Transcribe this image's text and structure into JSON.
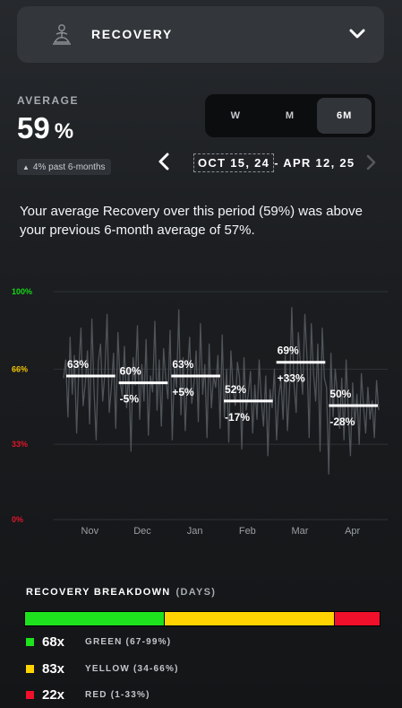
{
  "header": {
    "title": "RECOVERY",
    "icon": "meditation-icon",
    "toggle_icon": "chevron-down-icon"
  },
  "average": {
    "label": "AVERAGE",
    "value": "59",
    "unit": "%",
    "badge": "4% past 6-months",
    "badge_icon": "triangle-up-icon"
  },
  "period_selector": {
    "options": [
      "W",
      "M",
      "6M"
    ],
    "selected": "6M"
  },
  "date_range": {
    "text_before": "OCT 15, ",
    "text_selected": "24",
    "text_after": " - APR 12, 25"
  },
  "summary": "Your average Recovery over this period (59%) was above your previous 6-month average of 57%.",
  "chart_data": {
    "type": "line",
    "y_ticks": [
      {
        "label": "100%",
        "value": 100,
        "color": "#16d716"
      },
      {
        "label": "66%",
        "value": 66,
        "color": "#f2c500"
      },
      {
        "label": "33%",
        "value": 33,
        "color": "#e0162b"
      },
      {
        "label": "0%",
        "value": 0,
        "color": "#e0162b"
      }
    ],
    "ylim": [
      0,
      100
    ],
    "months": [
      "Nov",
      "Dec",
      "Jan",
      "Feb",
      "Mar",
      "Apr"
    ],
    "monthly_averages": [
      {
        "label": "63%",
        "change": "",
        "value": 63
      },
      {
        "label": "60%",
        "change": "-5%",
        "value": 60
      },
      {
        "label": "63%",
        "change": "+5%",
        "value": 63
      },
      {
        "label": "52%",
        "change": "-17%",
        "value": 52
      },
      {
        "label": "69%",
        "change": "+33%",
        "value": 69
      },
      {
        "label": "50%",
        "change": "-28%",
        "value": 50
      }
    ],
    "daily_values": [
      62,
      70,
      45,
      80,
      55,
      72,
      38,
      66,
      84,
      50,
      60,
      74,
      42,
      88,
      57,
      35,
      69,
      77,
      52,
      64,
      90,
      47,
      58,
      73,
      40,
      82,
      61,
      54,
      76,
      49,
      66,
      30,
      71,
      59,
      85,
      44,
      68,
      52,
      79,
      37,
      63,
      56,
      87,
      48,
      70,
      41,
      75,
      62,
      53,
      83,
      35,
      67,
      58,
      92,
      46,
      71,
      39,
      64,
      80,
      51,
      60,
      74,
      43,
      86,
      55,
      68,
      36,
      77,
      49,
      63,
      58,
      72,
      40,
      81,
      45,
      66,
      34,
      74,
      57,
      50,
      69,
      62,
      31,
      71,
      48,
      55,
      65,
      38,
      59,
      44,
      70,
      52,
      41,
      63,
      28,
      57,
      49,
      66,
      35,
      54,
      61,
      44,
      72,
      39,
      58,
      93,
      60,
      47,
      82,
      68,
      55,
      90,
      71,
      36,
      86,
      64,
      52,
      77,
      30,
      84,
      62,
      58,
      20,
      73,
      45,
      66,
      55,
      40,
      62,
      35,
      70,
      47,
      28,
      60,
      42,
      55,
      33,
      64,
      50,
      38,
      58,
      44,
      52,
      36,
      61,
      48
    ],
    "colors": {
      "line": "#4f5459",
      "avg_bar": "#ffffff",
      "grid": "#2f3337"
    }
  },
  "breakdown": {
    "title": "RECOVERY BREAKDOWN",
    "unit": "(DAYS)",
    "segments": [
      {
        "count": "68x",
        "label": "GREEN (67-99%)",
        "value": 68,
        "color": "#1fe21f"
      },
      {
        "count": "83x",
        "label": "YELLOW (34-66%)",
        "value": 83,
        "color": "#ffd400"
      },
      {
        "count": "22x",
        "label": "RED (1-33%)",
        "value": 22,
        "color": "#f0102b"
      }
    ]
  }
}
